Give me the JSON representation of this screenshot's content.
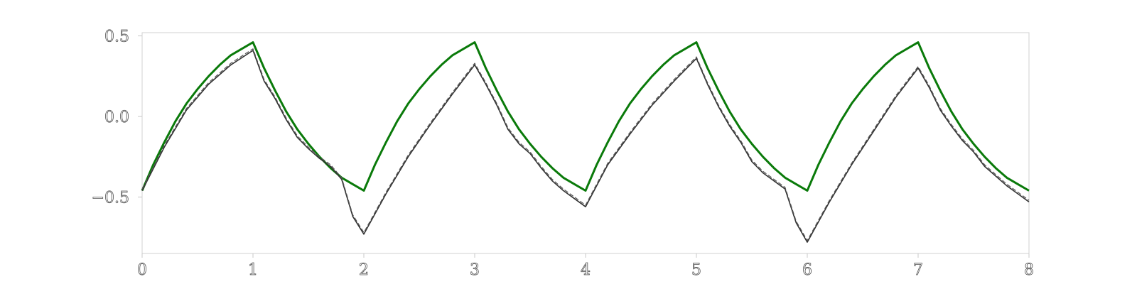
{
  "chart_data": {
    "type": "line",
    "title": "",
    "xlabel": "",
    "ylabel": "",
    "xlim": [
      0,
      8
    ],
    "ylim": [
      -0.85,
      0.52
    ],
    "grid": false,
    "x_ticks": [
      {
        "value": 0,
        "label": "0"
      },
      {
        "value": 1,
        "label": "1"
      },
      {
        "value": 2,
        "label": "2"
      },
      {
        "value": 3,
        "label": "3"
      },
      {
        "value": 4,
        "label": "4"
      },
      {
        "value": 5,
        "label": "5"
      },
      {
        "value": 6,
        "label": "6"
      },
      {
        "value": 7,
        "label": "7"
      },
      {
        "value": 8,
        "label": "8"
      }
    ],
    "y_ticks": [
      {
        "value": 0.5,
        "label": "0.5"
      },
      {
        "value": 0.0,
        "label": "0.0"
      },
      {
        "value": -0.5,
        "label": "−0.5"
      }
    ],
    "series": [
      {
        "color": "#0a7a0a",
        "style": "solid",
        "x": [
          0,
          0.1,
          0.2,
          0.3,
          0.4,
          0.5,
          0.6,
          0.7,
          0.8,
          0.9,
          1.0,
          1.1,
          1.2,
          1.3,
          1.4,
          1.5,
          1.6,
          1.7,
          1.8,
          1.9,
          2.0,
          2.1,
          2.2,
          2.3,
          2.4,
          2.5,
          2.6,
          2.7,
          2.8,
          2.9,
          3.0,
          3.1,
          3.2,
          3.3,
          3.4,
          3.5,
          3.6,
          3.7,
          3.8,
          3.9,
          4.0,
          4.1,
          4.2,
          4.3,
          4.4,
          4.5,
          4.6,
          4.7,
          4.8,
          4.9,
          5.0,
          5.1,
          5.2,
          5.3,
          5.4,
          5.5,
          5.6,
          5.7,
          5.8,
          5.9,
          6.0,
          6.1,
          6.2,
          6.3,
          6.4,
          6.5,
          6.6,
          6.7,
          6.8,
          6.9,
          7.0,
          7.1,
          7.2,
          7.3,
          7.4,
          7.5,
          7.6,
          7.7,
          7.8,
          7.9,
          8.0
        ],
        "y": [
          -0.46,
          -0.3,
          -0.16,
          -0.03,
          0.08,
          0.17,
          0.25,
          0.32,
          0.38,
          0.42,
          0.46,
          0.3,
          0.16,
          0.03,
          -0.08,
          -0.17,
          -0.25,
          -0.32,
          -0.38,
          -0.42,
          -0.46,
          -0.3,
          -0.16,
          -0.03,
          0.08,
          0.17,
          0.25,
          0.32,
          0.38,
          0.42,
          0.46,
          0.3,
          0.16,
          0.03,
          -0.08,
          -0.17,
          -0.25,
          -0.32,
          -0.38,
          -0.42,
          -0.46,
          -0.3,
          -0.16,
          -0.03,
          0.08,
          0.17,
          0.25,
          0.32,
          0.38,
          0.42,
          0.46,
          0.3,
          0.16,
          0.03,
          -0.08,
          -0.17,
          -0.25,
          -0.32,
          -0.38,
          -0.42,
          -0.46,
          -0.3,
          -0.16,
          -0.03,
          0.08,
          0.17,
          0.25,
          0.32,
          0.38,
          0.42,
          0.46,
          0.3,
          0.16,
          0.03,
          -0.08,
          -0.17,
          -0.25,
          -0.32,
          -0.38,
          -0.42,
          -0.46
        ]
      },
      {
        "color": "#333333",
        "style": "solid",
        "x": [
          0,
          0.2,
          0.4,
          0.6,
          0.8,
          1.0,
          1.1,
          1.2,
          1.3,
          1.4,
          1.5,
          1.6,
          1.7,
          1.8,
          1.9,
          2.0,
          2.2,
          2.4,
          2.6,
          2.8,
          3.0,
          3.1,
          3.2,
          3.3,
          3.4,
          3.5,
          3.6,
          3.7,
          3.8,
          3.9,
          4.0,
          4.2,
          4.4,
          4.6,
          4.8,
          5.0,
          5.1,
          5.2,
          5.3,
          5.4,
          5.5,
          5.6,
          5.7,
          5.8,
          5.9,
          6.0,
          6.2,
          6.4,
          6.6,
          6.8,
          7.0,
          7.1,
          7.2,
          7.3,
          7.4,
          7.5,
          7.6,
          7.7,
          7.8,
          7.9,
          8.0
        ],
        "y": [
          -0.46,
          -0.19,
          0.04,
          0.2,
          0.32,
          0.41,
          0.22,
          0.11,
          -0.02,
          -0.13,
          -0.2,
          -0.26,
          -0.31,
          -0.39,
          -0.62,
          -0.73,
          -0.48,
          -0.25,
          -0.05,
          0.14,
          0.32,
          0.2,
          0.07,
          -0.08,
          -0.17,
          -0.23,
          -0.32,
          -0.4,
          -0.46,
          -0.51,
          -0.56,
          -0.3,
          -0.11,
          0.07,
          0.22,
          0.36,
          0.2,
          0.06,
          -0.06,
          -0.16,
          -0.28,
          -0.35,
          -0.4,
          -0.45,
          -0.66,
          -0.78,
          -0.53,
          -0.3,
          -0.09,
          0.12,
          0.3,
          0.18,
          0.04,
          -0.06,
          -0.15,
          -0.22,
          -0.31,
          -0.37,
          -0.43,
          -0.48,
          -0.53
        ]
      },
      {
        "color": "#555555",
        "style": "dashed",
        "x": [
          0,
          0.2,
          0.4,
          0.6,
          0.8,
          1.0,
          1.1,
          1.2,
          1.3,
          1.4,
          1.5,
          1.6,
          1.7,
          1.8,
          1.9,
          2.0,
          2.2,
          2.4,
          2.6,
          2.8,
          3.0,
          3.1,
          3.2,
          3.3,
          3.4,
          3.5,
          3.6,
          3.7,
          3.8,
          3.9,
          4.0,
          4.2,
          4.4,
          4.6,
          4.8,
          5.0,
          5.1,
          5.2,
          5.3,
          5.4,
          5.5,
          5.6,
          5.7,
          5.8,
          5.9,
          6.0,
          6.2,
          6.4,
          6.6,
          6.8,
          7.0,
          7.1,
          7.2,
          7.3,
          7.4,
          7.5,
          7.6,
          7.7,
          7.8,
          7.9,
          8.0
        ],
        "y": [
          -0.45,
          -0.18,
          0.05,
          0.21,
          0.33,
          0.42,
          0.23,
          0.12,
          -0.01,
          -0.12,
          -0.19,
          -0.25,
          -0.3,
          -0.38,
          -0.61,
          -0.72,
          -0.47,
          -0.24,
          -0.04,
          0.15,
          0.33,
          0.21,
          0.08,
          -0.07,
          -0.16,
          -0.22,
          -0.31,
          -0.39,
          -0.45,
          -0.5,
          -0.55,
          -0.29,
          -0.1,
          0.08,
          0.23,
          0.37,
          0.21,
          0.07,
          -0.05,
          -0.15,
          -0.27,
          -0.34,
          -0.39,
          -0.44,
          -0.65,
          -0.77,
          -0.52,
          -0.29,
          -0.08,
          0.13,
          0.31,
          0.19,
          0.05,
          -0.05,
          -0.14,
          -0.21,
          -0.3,
          -0.36,
          -0.42,
          -0.47,
          -0.52
        ]
      }
    ]
  }
}
